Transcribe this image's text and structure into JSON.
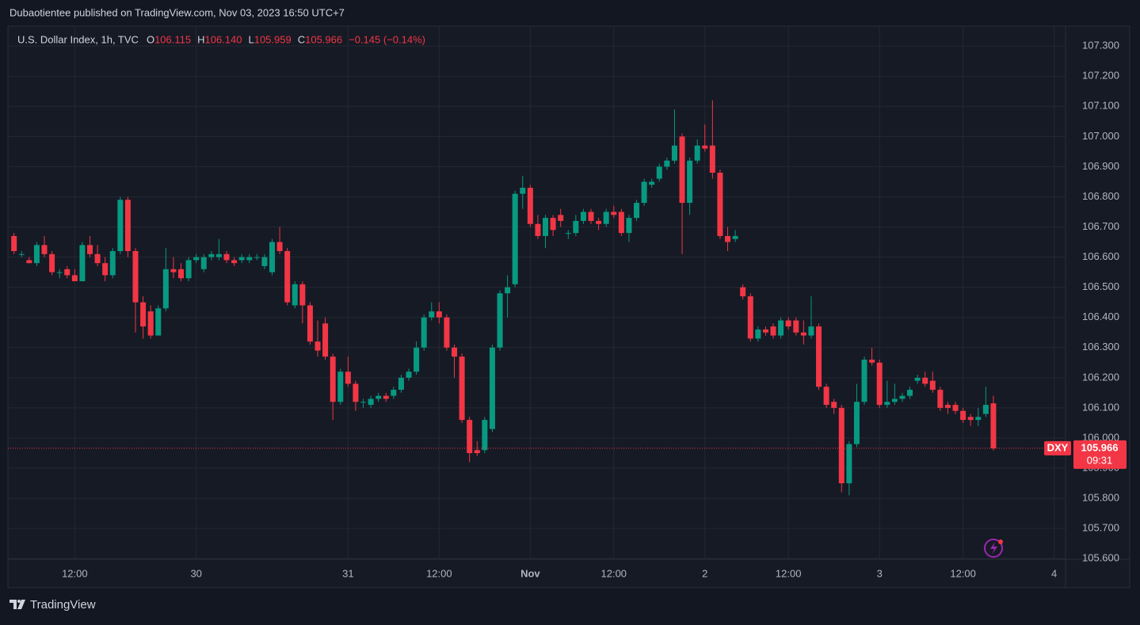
{
  "header": {
    "publisher": "Dubaotientee published on TradingView.com, Nov 03, 2023 16:50 UTC+7"
  },
  "footer": {
    "brand": "TradingView"
  },
  "chart_data": {
    "type": "candlestick",
    "symbol": "U.S. Dollar Index, 1h, TVC",
    "ohlc": [
      {
        "key": "O",
        "text": "106.115"
      },
      {
        "key": "H",
        "text": "106.140"
      },
      {
        "key": "L",
        "text": "105.959"
      },
      {
        "key": "C",
        "text": "105.966"
      }
    ],
    "change": "−0.145 (−0.14%)",
    "up_color": "#089981",
    "down_color": "#f23645",
    "grid": true,
    "ylim": [
      105.598,
      107.366
    ],
    "yticks": [
      {
        "value": 105.6,
        "label": "105.600"
      },
      {
        "value": 105.7,
        "label": "105.700"
      },
      {
        "value": 105.8,
        "label": "105.800"
      },
      {
        "value": 105.9,
        "label": "105.900"
      },
      {
        "value": 106.0,
        "label": "106.000"
      },
      {
        "value": 106.1,
        "label": "106.100"
      },
      {
        "value": 106.2,
        "label": "106.200"
      },
      {
        "value": 106.3,
        "label": "106.300"
      },
      {
        "value": 106.4,
        "label": "106.400"
      },
      {
        "value": 106.5,
        "label": "106.500"
      },
      {
        "value": 106.6,
        "label": "106.600"
      },
      {
        "value": 106.7,
        "label": "106.700"
      },
      {
        "value": 106.8,
        "label": "106.800"
      },
      {
        "value": 106.9,
        "label": "106.900"
      },
      {
        "value": 107.0,
        "label": "107.000"
      },
      {
        "value": 107.1,
        "label": "107.100"
      },
      {
        "value": 107.2,
        "label": "107.200"
      },
      {
        "value": 107.3,
        "label": "107.300"
      }
    ],
    "xlim": [
      -0.8,
      138.5
    ],
    "xticks": [
      {
        "value": 8,
        "label": "12:00"
      },
      {
        "value": 24,
        "label": "30"
      },
      {
        "value": 44,
        "label": "31"
      },
      {
        "value": 56,
        "label": "12:00"
      },
      {
        "value": 68,
        "label": "Nov"
      },
      {
        "value": 79,
        "label": "12:00"
      },
      {
        "value": 91,
        "label": "2"
      },
      {
        "value": 102,
        "label": "12:00"
      },
      {
        "value": 114,
        "label": "3"
      },
      {
        "value": 125,
        "label": "12:00"
      },
      {
        "value": 137,
        "label": "4"
      }
    ],
    "last_price": {
      "symbol": "DXY",
      "value": 105.966,
      "label": "105.966",
      "countdown": "09:31"
    },
    "candles": [
      {
        "open": 106.67,
        "high": 106.68,
        "low": 106.61,
        "close": 106.62
      },
      {
        "open": 106.61,
        "high": 106.62,
        "low": 106.6,
        "close": 106.61
      },
      {
        "open": 106.59,
        "high": 106.6,
        "low": 106.58,
        "close": 106.58
      },
      {
        "open": 106.58,
        "high": 106.65,
        "low": 106.57,
        "close": 106.64
      },
      {
        "open": 106.64,
        "high": 106.67,
        "low": 106.6,
        "close": 106.61
      },
      {
        "open": 106.61,
        "high": 106.62,
        "low": 106.54,
        "close": 106.55
      },
      {
        "open": 106.55,
        "high": 106.56,
        "low": 106.53,
        "close": 106.55
      },
      {
        "open": 106.56,
        "high": 106.57,
        "low": 106.53,
        "close": 106.54
      },
      {
        "open": 106.54,
        "high": 106.56,
        "low": 106.52,
        "close": 106.52
      },
      {
        "open": 106.52,
        "high": 106.65,
        "low": 106.52,
        "close": 106.64
      },
      {
        "open": 106.64,
        "high": 106.67,
        "low": 106.6,
        "close": 106.61
      },
      {
        "open": 106.61,
        "high": 106.64,
        "low": 106.57,
        "close": 106.58
      },
      {
        "open": 106.58,
        "high": 106.6,
        "low": 106.52,
        "close": 106.54
      },
      {
        "open": 106.54,
        "high": 106.63,
        "low": 106.53,
        "close": 106.62
      },
      {
        "open": 106.62,
        "high": 106.8,
        "low": 106.61,
        "close": 106.79
      },
      {
        "open": 106.79,
        "high": 106.8,
        "low": 106.6,
        "close": 106.62
      },
      {
        "open": 106.62,
        "high": 106.63,
        "low": 106.35,
        "close": 106.45
      },
      {
        "open": 106.45,
        "high": 106.47,
        "low": 106.33,
        "close": 106.37
      },
      {
        "open": 106.42,
        "high": 106.44,
        "low": 106.33,
        "close": 106.34
      },
      {
        "open": 106.34,
        "high": 106.44,
        "low": 106.34,
        "close": 106.43
      },
      {
        "open": 106.43,
        "high": 106.63,
        "low": 106.42,
        "close": 106.56
      },
      {
        "open": 106.56,
        "high": 106.6,
        "low": 106.53,
        "close": 106.55
      },
      {
        "open": 106.56,
        "high": 106.58,
        "low": 106.52,
        "close": 106.53
      },
      {
        "open": 106.53,
        "high": 106.6,
        "low": 106.52,
        "close": 106.59
      },
      {
        "open": 106.59,
        "high": 106.61,
        "low": 106.58,
        "close": 106.6
      },
      {
        "open": 106.56,
        "high": 106.61,
        "low": 106.55,
        "close": 106.6
      },
      {
        "open": 106.6,
        "high": 106.62,
        "low": 106.59,
        "close": 106.61
      },
      {
        "open": 106.6,
        "high": 106.66,
        "low": 106.59,
        "close": 106.61
      },
      {
        "open": 106.61,
        "high": 106.62,
        "low": 106.58,
        "close": 106.59
      },
      {
        "open": 106.59,
        "high": 106.6,
        "low": 106.57,
        "close": 106.58
      },
      {
        "open": 106.59,
        "high": 106.61,
        "low": 106.58,
        "close": 106.6
      },
      {
        "open": 106.59,
        "high": 106.61,
        "low": 106.58,
        "close": 106.6
      },
      {
        "open": 106.6,
        "high": 106.61,
        "low": 106.59,
        "close": 106.6
      },
      {
        "open": 106.57,
        "high": 106.61,
        "low": 106.56,
        "close": 106.6
      },
      {
        "open": 106.55,
        "high": 106.66,
        "low": 106.54,
        "close": 106.65
      },
      {
        "open": 106.65,
        "high": 106.7,
        "low": 106.61,
        "close": 106.62
      },
      {
        "open": 106.62,
        "high": 106.63,
        "low": 106.44,
        "close": 106.45
      },
      {
        "open": 106.44,
        "high": 106.52,
        "low": 106.43,
        "close": 106.51
      },
      {
        "open": 106.51,
        "high": 106.52,
        "low": 106.38,
        "close": 106.44
      },
      {
        "open": 106.44,
        "high": 106.45,
        "low": 106.31,
        "close": 106.32
      },
      {
        "open": 106.32,
        "high": 106.39,
        "low": 106.27,
        "close": 106.29
      },
      {
        "open": 106.38,
        "high": 106.4,
        "low": 106.26,
        "close": 106.27
      },
      {
        "open": 106.27,
        "high": 106.28,
        "low": 106.06,
        "close": 106.12
      },
      {
        "open": 106.12,
        "high": 106.23,
        "low": 106.11,
        "close": 106.22
      },
      {
        "open": 106.22,
        "high": 106.27,
        "low": 106.17,
        "close": 106.18
      },
      {
        "open": 106.18,
        "high": 106.19,
        "low": 106.09,
        "close": 106.12
      },
      {
        "open": 106.12,
        "high": 106.13,
        "low": 106.1,
        "close": 106.12
      },
      {
        "open": 106.11,
        "high": 106.14,
        "low": 106.1,
        "close": 106.13
      },
      {
        "open": 106.13,
        "high": 106.15,
        "low": 106.12,
        "close": 106.14
      },
      {
        "open": 106.14,
        "high": 106.15,
        "low": 106.12,
        "close": 106.13
      },
      {
        "open": 106.14,
        "high": 106.17,
        "low": 106.13,
        "close": 106.16
      },
      {
        "open": 106.16,
        "high": 106.21,
        "low": 106.15,
        "close": 106.2
      },
      {
        "open": 106.2,
        "high": 106.23,
        "low": 106.19,
        "close": 106.22
      },
      {
        "open": 106.22,
        "high": 106.32,
        "low": 106.21,
        "close": 106.3
      },
      {
        "open": 106.3,
        "high": 106.41,
        "low": 106.29,
        "close": 106.4
      },
      {
        "open": 106.4,
        "high": 106.45,
        "low": 106.39,
        "close": 106.42
      },
      {
        "open": 106.42,
        "high": 106.45,
        "low": 106.38,
        "close": 106.4
      },
      {
        "open": 106.4,
        "high": 106.41,
        "low": 106.29,
        "close": 106.3
      },
      {
        "open": 106.3,
        "high": 106.31,
        "low": 106.2,
        "close": 106.27
      },
      {
        "open": 106.27,
        "high": 106.28,
        "low": 106.05,
        "close": 106.06
      },
      {
        "open": 106.06,
        "high": 106.07,
        "low": 105.92,
        "close": 105.95
      },
      {
        "open": 105.96,
        "high": 105.99,
        "low": 105.94,
        "close": 105.95
      },
      {
        "open": 105.96,
        "high": 106.07,
        "low": 105.95,
        "close": 106.06
      },
      {
        "open": 106.03,
        "high": 106.31,
        "low": 106.02,
        "close": 106.3
      },
      {
        "open": 106.3,
        "high": 106.49,
        "low": 106.29,
        "close": 106.48
      },
      {
        "open": 106.48,
        "high": 106.54,
        "low": 106.4,
        "close": 106.5
      },
      {
        "open": 106.51,
        "high": 106.82,
        "low": 106.5,
        "close": 106.81
      },
      {
        "open": 106.81,
        "high": 106.87,
        "low": 106.76,
        "close": 106.83
      },
      {
        "open": 106.83,
        "high": 106.84,
        "low": 106.7,
        "close": 106.71
      },
      {
        "open": 106.71,
        "high": 106.74,
        "low": 106.66,
        "close": 106.67
      },
      {
        "open": 106.67,
        "high": 106.74,
        "low": 106.63,
        "close": 106.73
      },
      {
        "open": 106.73,
        "high": 106.74,
        "low": 106.67,
        "close": 106.69
      },
      {
        "open": 106.74,
        "high": 106.76,
        "low": 106.7,
        "close": 106.72
      },
      {
        "open": 106.68,
        "high": 106.69,
        "low": 106.66,
        "close": 106.68
      },
      {
        "open": 106.68,
        "high": 106.74,
        "low": 106.67,
        "close": 106.72
      },
      {
        "open": 106.72,
        "high": 106.76,
        "low": 106.71,
        "close": 106.75
      },
      {
        "open": 106.75,
        "high": 106.76,
        "low": 106.71,
        "close": 106.72
      },
      {
        "open": 106.72,
        "high": 106.73,
        "low": 106.69,
        "close": 106.71
      },
      {
        "open": 106.71,
        "high": 106.76,
        "low": 106.7,
        "close": 106.75
      },
      {
        "open": 106.75,
        "high": 106.77,
        "low": 106.73,
        "close": 106.74
      },
      {
        "open": 106.75,
        "high": 106.76,
        "low": 106.67,
        "close": 106.68
      },
      {
        "open": 106.68,
        "high": 106.74,
        "low": 106.65,
        "close": 106.73
      },
      {
        "open": 106.73,
        "high": 106.79,
        "low": 106.72,
        "close": 106.78
      },
      {
        "open": 106.78,
        "high": 106.86,
        "low": 106.77,
        "close": 106.85
      },
      {
        "open": 106.84,
        "high": 106.86,
        "low": 106.83,
        "close": 106.85
      },
      {
        "open": 106.86,
        "high": 106.91,
        "low": 106.85,
        "close": 106.9
      },
      {
        "open": 106.9,
        "high": 106.93,
        "low": 106.89,
        "close": 106.92
      },
      {
        "open": 106.92,
        "high": 107.09,
        "low": 106.91,
        "close": 106.97
      },
      {
        "open": 107.0,
        "high": 107.01,
        "low": 106.61,
        "close": 106.78
      },
      {
        "open": 106.78,
        "high": 106.93,
        "low": 106.74,
        "close": 106.92
      },
      {
        "open": 106.92,
        "high": 106.99,
        "low": 106.91,
        "close": 106.97
      },
      {
        "open": 106.97,
        "high": 107.04,
        "low": 106.95,
        "close": 106.96
      },
      {
        "open": 106.97,
        "high": 107.12,
        "low": 106.86,
        "close": 106.88
      },
      {
        "open": 106.88,
        "high": 106.89,
        "low": 106.66,
        "close": 106.67
      },
      {
        "open": 106.67,
        "high": 106.7,
        "low": 106.62,
        "close": 106.65
      },
      {
        "open": 106.66,
        "high": 106.69,
        "low": 106.65,
        "close": 106.67
      },
      {
        "open": 106.5,
        "high": 106.51,
        "low": 106.46,
        "close": 106.47
      },
      {
        "open": 106.47,
        "high": 106.48,
        "low": 106.32,
        "close": 106.33
      },
      {
        "open": 106.33,
        "high": 106.37,
        "low": 106.32,
        "close": 106.36
      },
      {
        "open": 106.36,
        "high": 106.37,
        "low": 106.34,
        "close": 106.35
      },
      {
        "open": 106.37,
        "high": 106.38,
        "low": 106.33,
        "close": 106.34
      },
      {
        "open": 106.34,
        "high": 106.4,
        "low": 106.33,
        "close": 106.39
      },
      {
        "open": 106.39,
        "high": 106.4,
        "low": 106.36,
        "close": 106.37
      },
      {
        "open": 106.39,
        "high": 106.4,
        "low": 106.34,
        "close": 106.35
      },
      {
        "open": 106.35,
        "high": 106.39,
        "low": 106.31,
        "close": 106.34
      },
      {
        "open": 106.34,
        "high": 106.47,
        "low": 106.33,
        "close": 106.37
      },
      {
        "open": 106.37,
        "high": 106.38,
        "low": 106.16,
        "close": 106.17
      },
      {
        "open": 106.17,
        "high": 106.18,
        "low": 106.1,
        "close": 106.11
      },
      {
        "open": 106.12,
        "high": 106.13,
        "low": 106.08,
        "close": 106.1
      },
      {
        "open": 106.1,
        "high": 106.11,
        "low": 105.82,
        "close": 105.85
      },
      {
        "open": 105.85,
        "high": 105.99,
        "low": 105.81,
        "close": 105.98
      },
      {
        "open": 105.98,
        "high": 106.18,
        "low": 105.97,
        "close": 106.12
      },
      {
        "open": 106.12,
        "high": 106.27,
        "low": 106.11,
        "close": 106.26
      },
      {
        "open": 106.26,
        "high": 106.3,
        "low": 106.24,
        "close": 106.25
      },
      {
        "open": 106.25,
        "high": 106.26,
        "low": 106.1,
        "close": 106.11
      },
      {
        "open": 106.11,
        "high": 106.19,
        "low": 106.1,
        "close": 106.12
      },
      {
        "open": 106.12,
        "high": 106.18,
        "low": 106.11,
        "close": 106.13
      },
      {
        "open": 106.13,
        "high": 106.15,
        "low": 106.12,
        "close": 106.14
      },
      {
        "open": 106.14,
        "high": 106.17,
        "low": 106.13,
        "close": 106.16
      },
      {
        "open": 106.19,
        "high": 106.21,
        "low": 106.18,
        "close": 106.2
      },
      {
        "open": 106.2,
        "high": 106.22,
        "low": 106.17,
        "close": 106.18
      },
      {
        "open": 106.19,
        "high": 106.22,
        "low": 106.15,
        "close": 106.16
      },
      {
        "open": 106.16,
        "high": 106.17,
        "low": 106.09,
        "close": 106.1
      },
      {
        "open": 106.11,
        "high": 106.12,
        "low": 106.08,
        "close": 106.1
      },
      {
        "open": 106.11,
        "high": 106.12,
        "low": 106.08,
        "close": 106.09
      },
      {
        "open": 106.09,
        "high": 106.1,
        "low": 106.05,
        "close": 106.06
      },
      {
        "open": 106.07,
        "high": 106.08,
        "low": 106.04,
        "close": 106.06
      },
      {
        "open": 106.06,
        "high": 106.1,
        "low": 106.04,
        "close": 106.07
      },
      {
        "open": 106.08,
        "high": 106.17,
        "low": 106.07,
        "close": 106.11
      },
      {
        "open": 106.115,
        "high": 106.14,
        "low": 105.959,
        "close": 105.966
      }
    ]
  }
}
